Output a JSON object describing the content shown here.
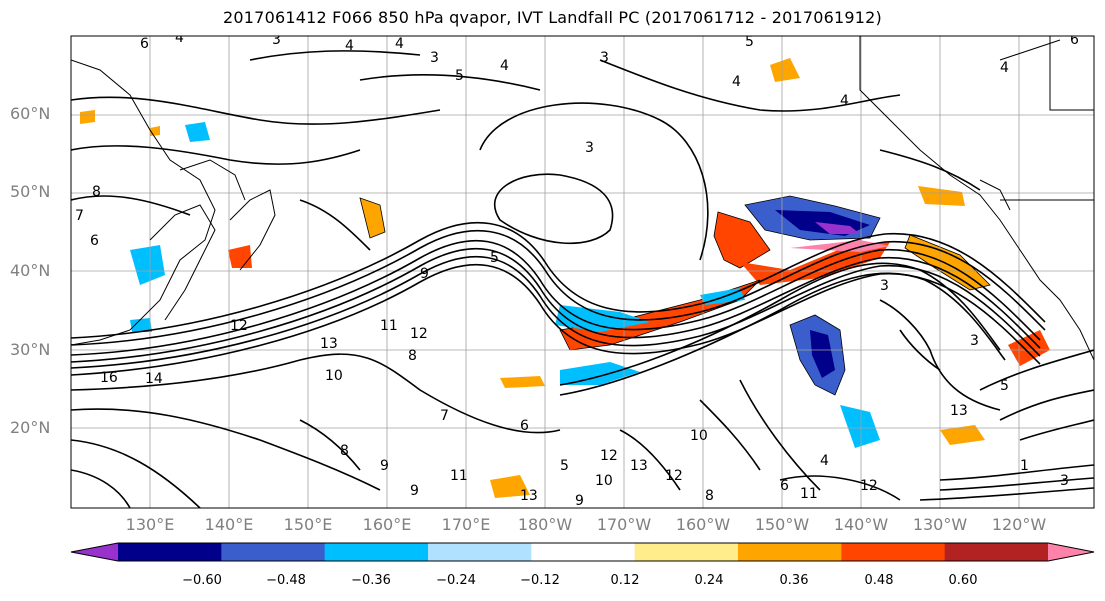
{
  "title": "2017061412 F066 850 hPa qvapor, IVT Landfall PC (2017061712 - 2017061912)",
  "latitude_labels": [
    "60°N",
    "50°N",
    "40°N",
    "30°N",
    "20°N"
  ],
  "longitude_labels": [
    "130°E",
    "140°E",
    "150°E",
    "160°E",
    "170°E",
    "180°W",
    "170°W",
    "160°W",
    "150°W",
    "140°W",
    "130°W",
    "120°W"
  ],
  "colorbar": {
    "tick_labels": [
      "−0.60",
      "−0.48",
      "−0.36",
      "−0.24",
      "−0.12",
      "0.12",
      "0.24",
      "0.36",
      "0.48",
      "0.60"
    ],
    "colors": [
      "#9932cc",
      "#00008b",
      "#3a5fcd",
      "#00bfff",
      "#b0e2ff",
      "#ffffff",
      "#ffec8b",
      "#ffa500",
      "#ff4500",
      "#b22222",
      "#ff82ab"
    ]
  },
  "contour_labels": [
    "6",
    "4",
    "3",
    "4",
    "5",
    "4",
    "3",
    "5",
    "4",
    "4",
    "4",
    "6",
    "8",
    "7",
    "6",
    "4",
    "3",
    "3",
    "5",
    "9",
    "11",
    "12",
    "13",
    "16",
    "14",
    "12",
    "10",
    "8",
    "7",
    "6",
    "5",
    "13",
    "12",
    "10",
    "9",
    "8",
    "6",
    "4",
    "3",
    "3",
    "5",
    "1",
    "3",
    "12",
    "13",
    "9",
    "11",
    "13",
    "12",
    "10",
    "9",
    "8",
    "11"
  ],
  "colors": {
    "contour": "#000000",
    "grid": "#a0a0a0",
    "coast": "#000000",
    "axis_text": "#808080"
  }
}
